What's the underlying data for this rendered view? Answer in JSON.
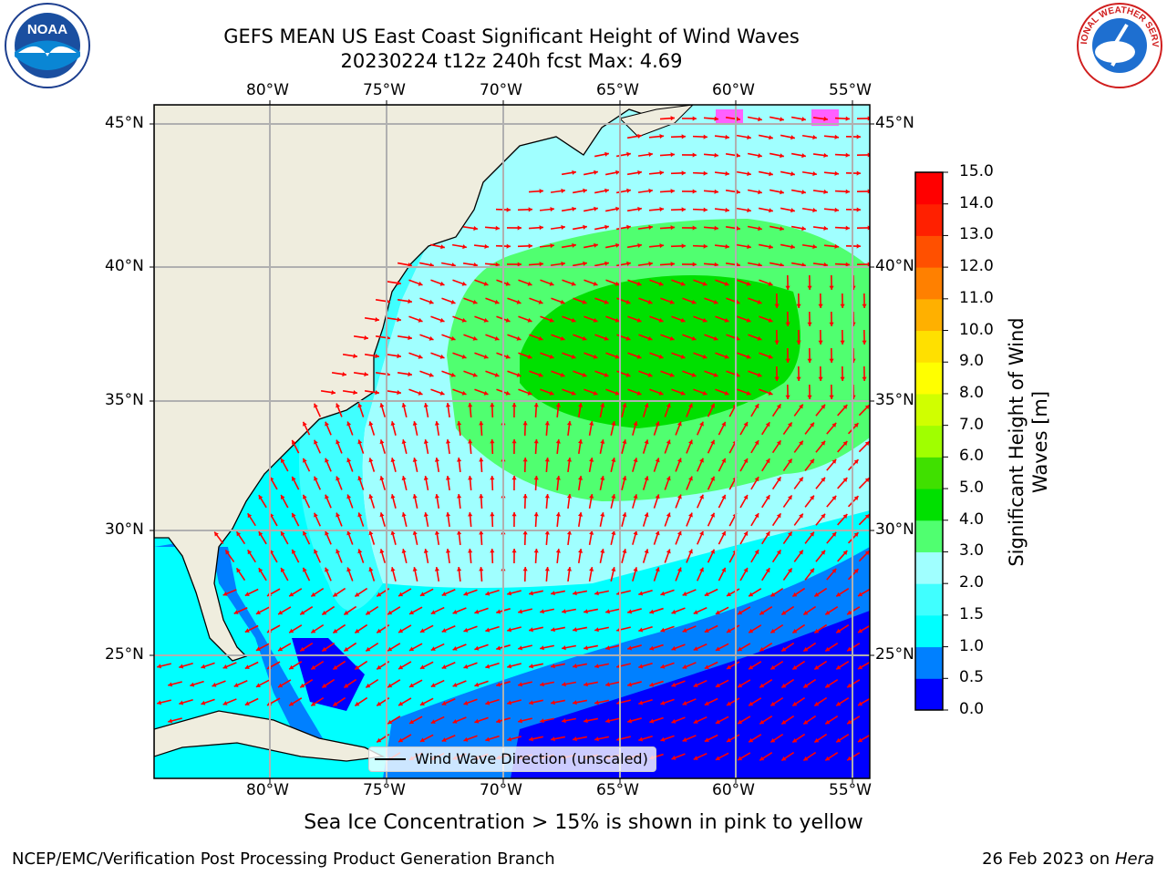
{
  "header": {
    "title_line1": "GEFS MEAN US East Coast Significant Height of Wind Waves",
    "title_line2": "20230224 t12z 240h fcst   Max: 4.69"
  },
  "logos": {
    "left": {
      "icon": "noaa-logo-icon",
      "text": "NOAA"
    },
    "right": {
      "icon": "nws-logo-icon",
      "text": "NATIONAL WEATHER SERVICE"
    }
  },
  "map": {
    "lon_labels_top": [
      "80°W",
      "75°W",
      "70°W",
      "65°W",
      "60°W",
      "55°W"
    ],
    "lon_labels_bottom": [
      "80°W",
      "75°W",
      "70°W",
      "65°W",
      "60°W",
      "55°W"
    ],
    "lat_labels_left": [
      "45°N",
      "40°N",
      "35°N",
      "30°N",
      "25°N"
    ],
    "lat_labels_right": [
      "45°N",
      "40°N",
      "35°N",
      "30°N",
      "25°N"
    ],
    "legend": "Wind Wave Direction (unscaled)",
    "colors": {
      "land": "#efedde",
      "arrow": "#ff0000",
      "grid": "#b0b0b0"
    }
  },
  "colorbar": {
    "label": "Significant Height of Wind Waves [m]",
    "ticks": [
      "0.0",
      "0.5",
      "1.0",
      "1.5",
      "2.0",
      "3.0",
      "4.0",
      "5.0",
      "6.0",
      "7.0",
      "8.0",
      "9.0",
      "10.0",
      "11.0",
      "12.0",
      "13.0",
      "14.0",
      "15.0"
    ],
    "colors": [
      "#0000ff",
      "#0080ff",
      "#00ffff",
      "#40ffff",
      "#a0ffff",
      "#50ff70",
      "#00e000",
      "#40e000",
      "#a0ff00",
      "#d0ff00",
      "#ffff00",
      "#ffe000",
      "#ffb000",
      "#ff8000",
      "#ff5000",
      "#ff2000",
      "#ff0000"
    ]
  },
  "notes": {
    "sea_ice": "Sea Ice Concentration > 15% is shown in pink to yellow",
    "footer_left": "NCEP/EMC/Verification Post Processing Product Generation Branch",
    "footer_right_date": "26 Feb 2023 on ",
    "footer_right_machine": "Hera"
  }
}
